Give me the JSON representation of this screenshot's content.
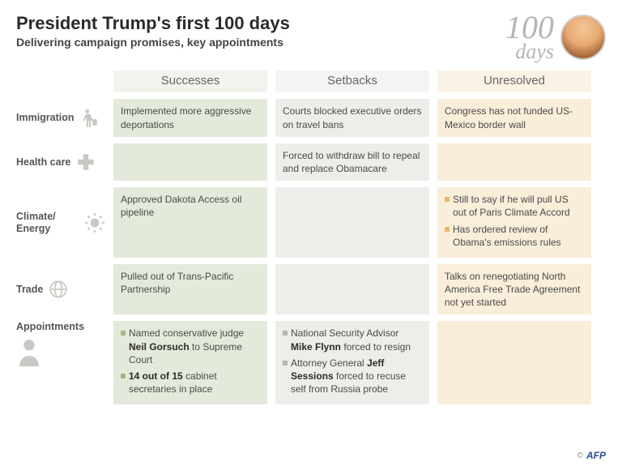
{
  "header": {
    "title": "President Trump's first 100 days",
    "subtitle": "Delivering campaign promises, key appointments",
    "big_number": "100",
    "big_label": "days"
  },
  "columns": {
    "successes": "Successes",
    "setbacks": "Setbacks",
    "unresolved": "Unresolved"
  },
  "colors": {
    "successes_bg": "#e4eadb",
    "setbacks_bg": "#edeeea",
    "unresolved_bg": "#f9eed9",
    "successes_head": "#f1f3ed",
    "setbacks_head": "#f4f4f2",
    "unresolved_head": "#fbf2e6",
    "bullet_green": "#9db887",
    "bullet_grey": "#b6b6ae",
    "bullet_peach": "#e8b86a"
  },
  "rows": {
    "immigration": {
      "label": "Immigration",
      "successes": "Implemented more aggressive deportations",
      "setbacks": "Courts blocked executive orders on travel bans",
      "unresolved": "Congress has not funded US-Mexico border wall"
    },
    "healthcare": {
      "label": "Health care",
      "setbacks": "Forced to withdraw bill to repeal and replace Obamacare"
    },
    "climate": {
      "label": "Climate/ Energy",
      "successes": "Approved Dakota Access oil pipeline",
      "unresolved_items": [
        "Still to say if he will pull US out of Paris Climate Accord",
        "Has ordered review of Obama's emissions rules"
      ]
    },
    "trade": {
      "label": "Trade",
      "successes": "Pulled out of Trans-Pacific Partnership",
      "unresolved": "Talks on renegotiating North America Free Trade Agreement not yet started"
    },
    "appointments": {
      "label": "Appointments",
      "successes_items_html": [
        "Named conservative judge <b>Neil Gorsuch</b> to Supreme Court",
        "<b>14 out of 15</b> cabinet secretaries in place"
      ],
      "setbacks_items_html": [
        "National Security Advisor <b>Mike Flynn</b> forced to resign",
        "Attorney General <b>Jeff Sessions</b> forced to recuse self from Russia probe"
      ]
    }
  },
  "credit": {
    "copyright": "©",
    "agency": "AFP"
  }
}
